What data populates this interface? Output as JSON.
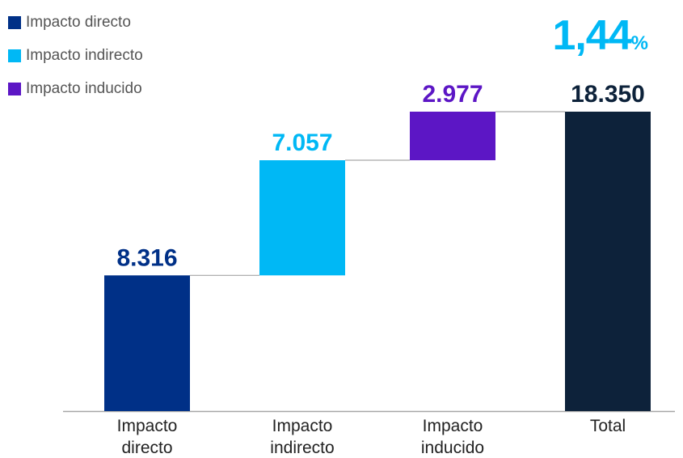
{
  "headline": {
    "value": "1,44",
    "suffix": "%"
  },
  "legend": [
    {
      "label": "Impacto directo",
      "color": "#003087"
    },
    {
      "label": "Impacto indirecto",
      "color": "#00b8f5"
    },
    {
      "label": "Impacto inducido",
      "color": "#5c16c5"
    }
  ],
  "chart_data": {
    "type": "bar",
    "subtype": "waterfall",
    "categories": [
      "Impacto directo",
      "Impacto indirecto",
      "Impacto inducido",
      "Total"
    ],
    "values": [
      8316,
      7057,
      2977,
      18350
    ],
    "value_labels": [
      "8.316",
      "7.057",
      "2.977",
      "18.350"
    ],
    "bases": [
      0,
      8316,
      15373,
      0
    ],
    "colors": [
      "#003087",
      "#00b8f5",
      "#5c16c5",
      "#0d223a"
    ],
    "label_colors": [
      "#003087",
      "#00b8f5",
      "#5c16c5",
      "#0d223a"
    ],
    "connector_color": "#a6a6a6",
    "ylim": [
      0,
      18350
    ],
    "legend_position": "top-left",
    "grid": false
  }
}
